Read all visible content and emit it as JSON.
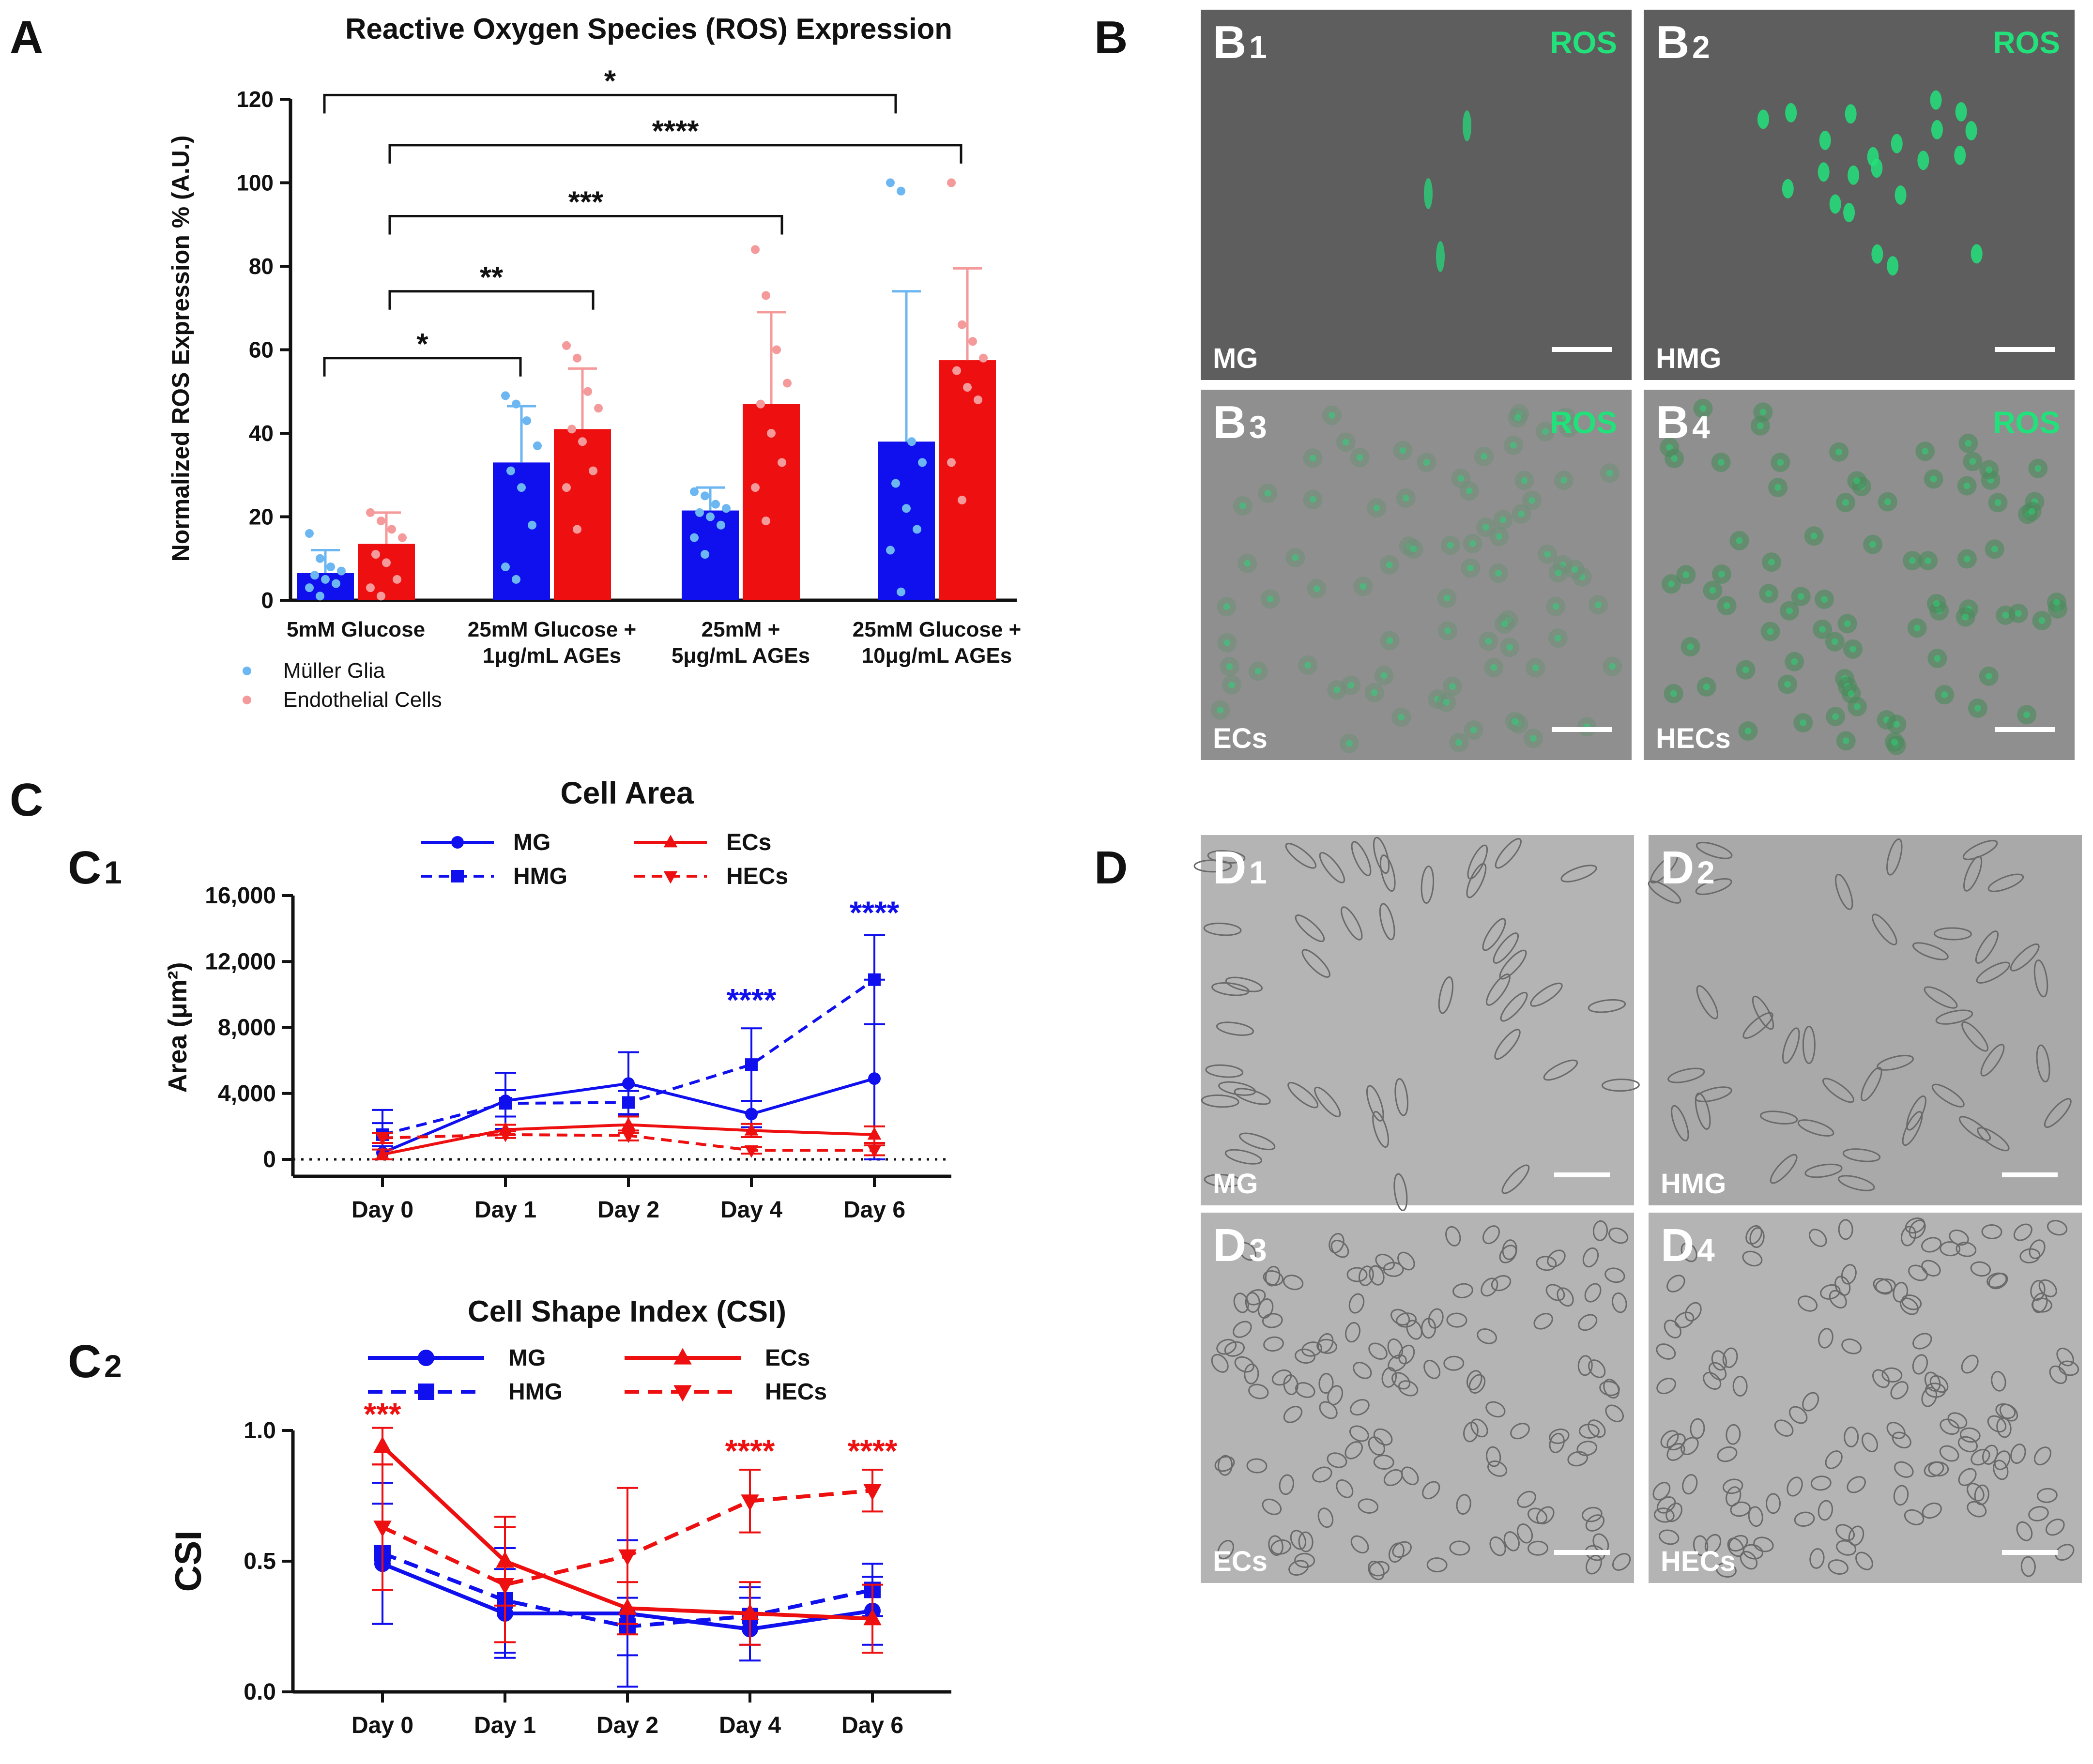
{
  "panel_letters": {
    "a": "A",
    "b": "B",
    "c": "C",
    "d": "D"
  },
  "colors": {
    "mg": "#1010ee",
    "ec": "#ee1010",
    "mg_dot": "#6cb6f2",
    "ec_dot": "#f49a9a",
    "ros": "#22e07a",
    "axis": "#111111"
  },
  "panelA": {
    "legend": [
      {
        "label": "Müller Glia",
        "color": "#6cb6f2"
      },
      {
        "label": "Endothelial Cells",
        "color": "#f49a9a"
      }
    ]
  },
  "panelB": {
    "tiles": [
      {
        "letter": "B",
        "sub": "1",
        "label": "MG",
        "stain": "ROS"
      },
      {
        "letter": "B",
        "sub": "2",
        "label": "HMG",
        "stain": "ROS"
      },
      {
        "letter": "B",
        "sub": "3",
        "label": "ECs",
        "stain": "ROS"
      },
      {
        "letter": "B",
        "sub": "4",
        "label": "HECs",
        "stain": "ROS"
      }
    ]
  },
  "panelC": {
    "c1": {
      "letter": "C",
      "sub": "1"
    },
    "c2": {
      "letter": "C",
      "sub": "2"
    }
  },
  "panelD": {
    "tiles": [
      {
        "letter": "D",
        "sub": "1",
        "label": "MG"
      },
      {
        "letter": "D",
        "sub": "2",
        "label": "HMG"
      },
      {
        "letter": "D",
        "sub": "3",
        "label": "ECs"
      },
      {
        "letter": "D",
        "sub": "4",
        "label": "HECs"
      }
    ]
  },
  "chart_data": [
    {
      "id": "A",
      "type": "bar",
      "title": "Reactive Oxygen Species (ROS) Expression",
      "ylabel": "Normalized ROS Expression % (A.U.)",
      "ylim": [
        0,
        120
      ],
      "yticks": [
        0,
        20,
        40,
        60,
        80,
        100,
        120
      ],
      "categories": [
        [
          "5mM Glucose"
        ],
        [
          "25mM Glucose +",
          "1μg/mL AGEs"
        ],
        [
          "25mM +",
          "5μg/mL AGEs"
        ],
        [
          "25mM Glucose +",
          "10μg/mL AGEs"
        ]
      ],
      "series": [
        {
          "name": "Müller Glia",
          "values": [
            6.5,
            33,
            21.5,
            38
          ],
          "err": [
            5.5,
            13.5,
            5.5,
            36
          ],
          "points": [
            [
              16,
              10,
              8,
              7,
              6,
              5,
              4,
              3,
              1
            ],
            [
              49,
              47,
              43,
              37,
              31,
              27,
              18,
              8,
              5
            ],
            [
              26,
              25,
              23,
              22,
              21,
              20,
              18,
              15,
              11
            ],
            [
              100,
              98,
              38,
              33,
              28,
              22,
              17,
              12,
              2
            ]
          ]
        },
        {
          "name": "Endothelial Cells",
          "values": [
            13.5,
            41,
            47,
            57.5
          ],
          "err": [
            7.5,
            14.5,
            22,
            22
          ],
          "points": [
            [
              21,
              19,
              17,
              15,
              11,
              9,
              5,
              3,
              1
            ],
            [
              61,
              58,
              50,
              46,
              41,
              38,
              31,
              27,
              17
            ],
            [
              84,
              73,
              60,
              52,
              47,
              40,
              33,
              27,
              19
            ],
            [
              100,
              66,
              62,
              58,
              55,
              51,
              48,
              33,
              24
            ]
          ]
        }
      ],
      "significance": [
        {
          "from": 0,
          "to": 3,
          "label": "*",
          "y": 121
        },
        {
          "from": 0,
          "to": 3,
          "label": "****",
          "y": 109,
          "shift": true
        },
        {
          "from": 0,
          "to": 2,
          "label": "***",
          "y": 92
        },
        {
          "from": 0,
          "to": 1,
          "label": "**",
          "y": 74
        },
        {
          "from": 0,
          "to": 1,
          "label": "*",
          "y": 58,
          "left": true
        }
      ]
    },
    {
      "id": "C1",
      "type": "line",
      "title": "Cell Area",
      "ylabel": "Area (μm²)",
      "ylim": [
        0,
        16000
      ],
      "yticks": [
        0,
        4000,
        8000,
        12000,
        16000
      ],
      "ytick_labels": [
        "0",
        "4,000",
        "8,000",
        "12,000",
        "16,000"
      ],
      "categories": [
        "Day 0",
        "Day 1",
        "Day 2",
        "Day 4",
        "Day 6"
      ],
      "series": [
        {
          "name": "MG",
          "values": [
            400,
            3550,
            4600,
            2750,
            4900
          ],
          "err": [
            2600,
            1700,
            1900,
            800,
            6000
          ],
          "style": "solid",
          "marker": "circle",
          "color": "#1010ee"
        },
        {
          "name": "HMG",
          "values": [
            1500,
            3400,
            3450,
            5750,
            10900
          ],
          "err": [
            700,
            800,
            700,
            2200,
            2700
          ],
          "style": "dashed",
          "marker": "square",
          "color": "#1010ee"
        },
        {
          "name": "ECs",
          "values": [
            300,
            1800,
            2100,
            1750,
            1500
          ],
          "err": [
            300,
            300,
            500,
            400,
            500
          ],
          "style": "solid",
          "marker": "triangle",
          "color": "#ee1010"
        },
        {
          "name": "HECs",
          "values": [
            1300,
            1500,
            1450,
            550,
            550
          ],
          "err": [
            300,
            200,
            300,
            200,
            300
          ],
          "style": "dashed",
          "marker": "triangle-down",
          "color": "#ee1010"
        }
      ],
      "annotations": [
        {
          "x": 3,
          "y": 9000,
          "text": "****",
          "color": "#1010ee"
        },
        {
          "x": 4,
          "y": 14300,
          "text": "****",
          "color": "#1010ee"
        }
      ]
    },
    {
      "id": "C2",
      "type": "line",
      "title": "Cell Shape Index (CSI)",
      "ylabel": "CSI",
      "ylim": [
        0,
        1.0
      ],
      "yticks": [
        0,
        0.5,
        1.0
      ],
      "ytick_labels": [
        "0.0",
        "0.5",
        "1.0"
      ],
      "categories": [
        "Day 0",
        "Day 1",
        "Day 2",
        "Day 4",
        "Day 6"
      ],
      "series": [
        {
          "name": "MG",
          "values": [
            0.49,
            0.3,
            0.3,
            0.24,
            0.31
          ],
          "err": [
            0.23,
            0.17,
            0.28,
            0.12,
            0.13
          ],
          "style": "solid",
          "marker": "circle",
          "color": "#1010ee"
        },
        {
          "name": "HMG",
          "values": [
            0.53,
            0.35,
            0.25,
            0.29,
            0.39
          ],
          "err": [
            0.27,
            0.2,
            0.11,
            0.11,
            0.1
          ],
          "style": "dashed",
          "marker": "square",
          "color": "#1010ee"
        },
        {
          "name": "ECs",
          "values": [
            0.94,
            0.5,
            0.32,
            0.3,
            0.28
          ],
          "err": [
            0.07,
            0.17,
            0.1,
            0.12,
            0.13
          ],
          "style": "solid",
          "marker": "triangle",
          "color": "#ee1010"
        },
        {
          "name": "HECs",
          "values": [
            0.63,
            0.41,
            0.52,
            0.73,
            0.77
          ],
          "err": [
            0.24,
            0.22,
            0.26,
            0.12,
            0.08
          ],
          "style": "dashed",
          "marker": "triangle-down",
          "color": "#ee1010"
        }
      ],
      "annotations": [
        {
          "x": 0,
          "y": 1.02,
          "text": "***",
          "color": "#ee1010"
        },
        {
          "x": 3,
          "y": 0.88,
          "text": "****",
          "color": "#ee1010"
        },
        {
          "x": 4,
          "y": 0.88,
          "text": "****",
          "color": "#ee1010"
        }
      ]
    }
  ]
}
